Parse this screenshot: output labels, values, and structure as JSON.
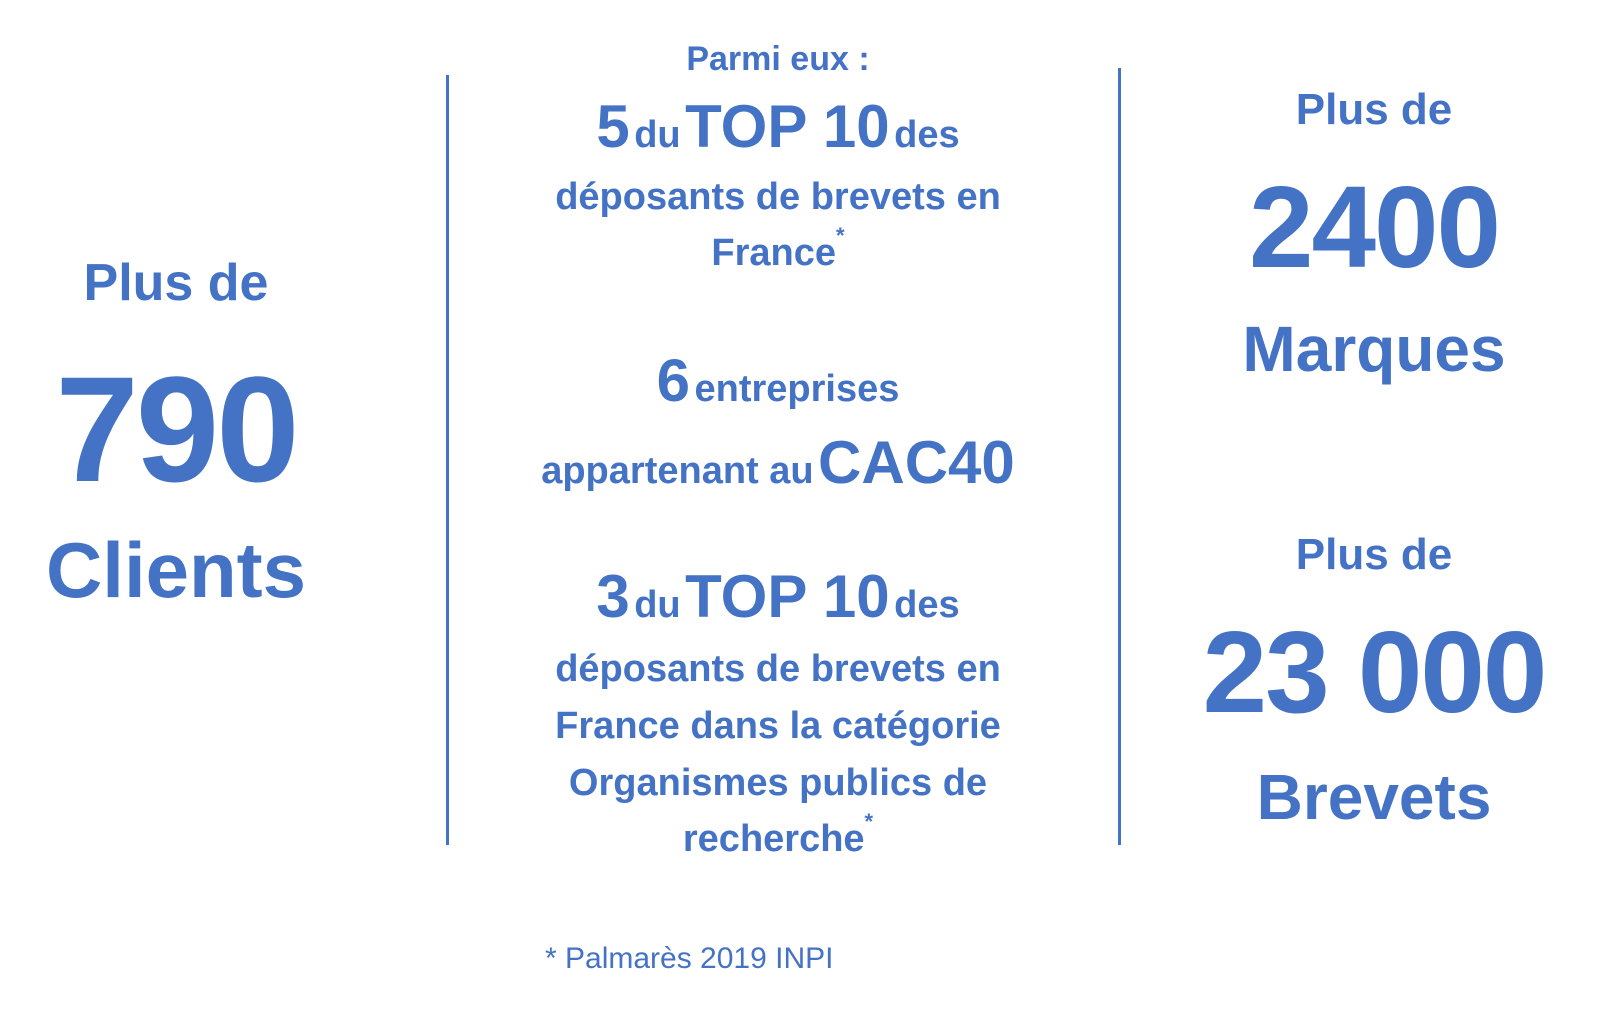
{
  "left": {
    "prefix": "Plus de",
    "number": "790",
    "label": "Clients"
  },
  "middle": {
    "intro": "Parmi eux :",
    "block1": {
      "count": "5",
      "du": "du",
      "top": "TOP 10",
      "des": "des",
      "line2": "déposants de brevets en",
      "line3": "France",
      "mark": "*"
    },
    "block2": {
      "count": "6",
      "word": "entreprises",
      "line2": "appartenant au",
      "index": "CAC40"
    },
    "block3": {
      "count": "3",
      "du": "du",
      "top": "TOP 10",
      "des": "des",
      "line2": "déposants de brevets en",
      "line3": "France dans la catégorie",
      "line4": "Organismes publics de",
      "line5": "recherche",
      "mark": "*"
    }
  },
  "right": {
    "marques": {
      "prefix": "Plus de",
      "number": "2400",
      "label": "Marques"
    },
    "brevets": {
      "prefix": "Plus de",
      "number": "23 000",
      "label": "Brevets"
    }
  },
  "footnote": "* Palmarès 2019 INPI",
  "colors": {
    "accent": "#4472c4",
    "background": "#ffffff"
  }
}
